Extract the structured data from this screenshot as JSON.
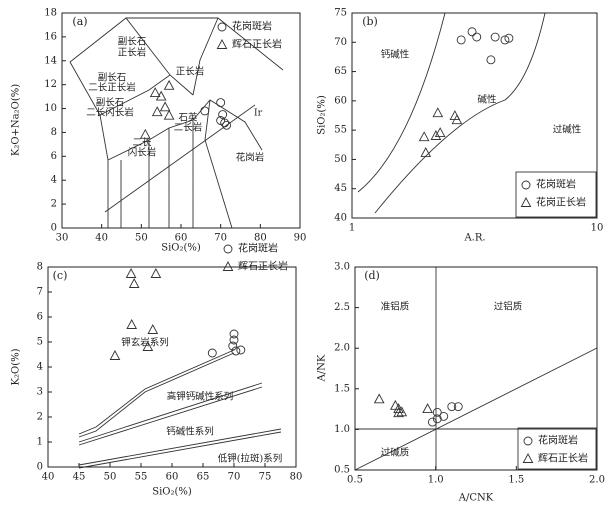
{
  "chart_data": [
    {
      "type": "scatter",
      "title": "(a)",
      "xlabel": "SiO₂(%)",
      "ylabel": "K₂O+Na₂O(%)",
      "xlim": [
        30,
        90
      ],
      "xticks": [
        30,
        40,
        50,
        60,
        70,
        80,
        90
      ],
      "ylim": [
        0,
        18
      ],
      "yticks": [
        0,
        2,
        4,
        6,
        8,
        10,
        12,
        14,
        16,
        18
      ],
      "legend": "upper right",
      "annotations": [
        "副长石",
        "正长岩",
        "正长岩",
        "副长石",
        "二长正长岩",
        "副长石",
        "二长闪长岩",
        "石英",
        "二长岩",
        "二长",
        "闪长岩",
        "花岗岩",
        "Ir"
      ],
      "series": [
        {
          "name": "花岗斑岩",
          "marker": "circle",
          "color": "#333333",
          "x": [
            66,
            70,
            70.5,
            70,
            71,
            71.5
          ],
          "y": [
            9.8,
            10.5,
            9.5,
            9,
            8.8,
            8.6
          ]
        },
        {
          "name": "辉石正长岩",
          "marker": "triangle",
          "color": "#333333",
          "x": [
            53.5,
            57,
            54,
            56,
            51,
            57,
            55
          ],
          "y": [
            11.3,
            11.9,
            9.7,
            10.1,
            7.8,
            9.4,
            11
          ]
        }
      ]
    },
    {
      "type": "scatter",
      "title": "(b)",
      "xlabel": "A.R.",
      "ylabel": "SiO₂(%)",
      "xscale": "log",
      "xlim": [
        1,
        10
      ],
      "xticks": [
        1,
        10
      ],
      "ylim": [
        40,
        75
      ],
      "yticks": [
        40,
        45,
        50,
        55,
        60,
        65,
        70,
        75
      ],
      "legend": "lower right",
      "annotations": [
        "钙碱性",
        "碱性",
        "过碱性"
      ],
      "series": [
        {
          "name": "花岗斑岩",
          "marker": "circle",
          "color": "#333333",
          "x": [
            2.79,
            3.09,
            3.23,
            3.84,
            4.21,
            4.37,
            3.69
          ],
          "y": [
            70.4,
            71.8,
            70.9,
            70.9,
            70.4,
            70.7,
            67.0
          ]
        },
        {
          "name": "花岗正长岩",
          "marker": "triangle",
          "color": "#333333",
          "x": [
            1.97,
            2.24,
            2.29,
            2.2,
            2.63,
            2.68,
            2.0
          ],
          "y": [
            53.8,
            57.9,
            54.5,
            54,
            57.4,
            56.7,
            51.1
          ]
        }
      ]
    },
    {
      "type": "scatter",
      "title": "(c)",
      "xlabel": "SiO₂(%)",
      "ylabel": "K₂O(%)",
      "xlim": [
        40,
        80
      ],
      "xticks": [
        40,
        45,
        50,
        55,
        60,
        65,
        70,
        75,
        80
      ],
      "ylim": [
        0,
        8
      ],
      "yticks": [
        0,
        1,
        2,
        3,
        4,
        5,
        6,
        7,
        8
      ],
      "legend": "upper right",
      "annotations": [
        "钾玄岩系列",
        "高钾钙碱性系列",
        "钙碱性系列",
        "低钾(拉斑)系列"
      ],
      "series": [
        {
          "name": "花岗斑岩",
          "marker": "circle",
          "color": "#333333",
          "x": [
            70,
            70,
            69.8,
            70.3,
            71.1,
            66.5
          ],
          "y": [
            5.32,
            5.08,
            4.84,
            4.64,
            4.68,
            4.56
          ]
        },
        {
          "name": "辉石正长岩",
          "marker": "triangle",
          "color": "#333333",
          "x": [
            53.4,
            57.4,
            53.9,
            53.5,
            56.9,
            56.1,
            50.8
          ],
          "y": [
            7.72,
            7.72,
            7.32,
            5.68,
            5.48,
            4.8,
            4.44
          ]
        }
      ]
    },
    {
      "type": "scatter",
      "title": "(d)",
      "xlabel": "A/CNK",
      "ylabel": "A/NK",
      "xlim": [
        0.5,
        2.0
      ],
      "xticks": [
        0.5,
        {
          "value": 1,
          "label": "1.0"
        },
        1.5,
        {
          "value": 2,
          "label": "2.0"
        }
      ],
      "ylim": [
        0.5,
        3.0
      ],
      "yticks": [
        0.5,
        {
          "value": 1,
          "label": "1.0"
        },
        1.5,
        {
          "value": 2,
          "label": "2.0"
        },
        2.5,
        {
          "value": 3,
          "label": "3.0"
        }
      ],
      "legend": "lower right",
      "annotations": [
        "准铝质",
        "过铝质",
        "过碱质"
      ],
      "series": [
        {
          "name": "花岗斑岩",
          "marker": "circle",
          "color": "#333333",
          "x": [
            0.98,
            1.01,
            1.05,
            1.1,
            1.14,
            1.01
          ],
          "y": [
            1.09,
            1.21,
            1.16,
            1.28,
            1.28,
            1.13
          ]
        },
        {
          "name": "辉石正长岩",
          "marker": "triangle",
          "color": "#333333",
          "x": [
            0.65,
            0.75,
            0.77,
            0.79,
            0.77,
            0.95
          ],
          "y": [
            1.37,
            1.29,
            1.25,
            1.21,
            1.2,
            1.25
          ]
        }
      ]
    }
  ]
}
